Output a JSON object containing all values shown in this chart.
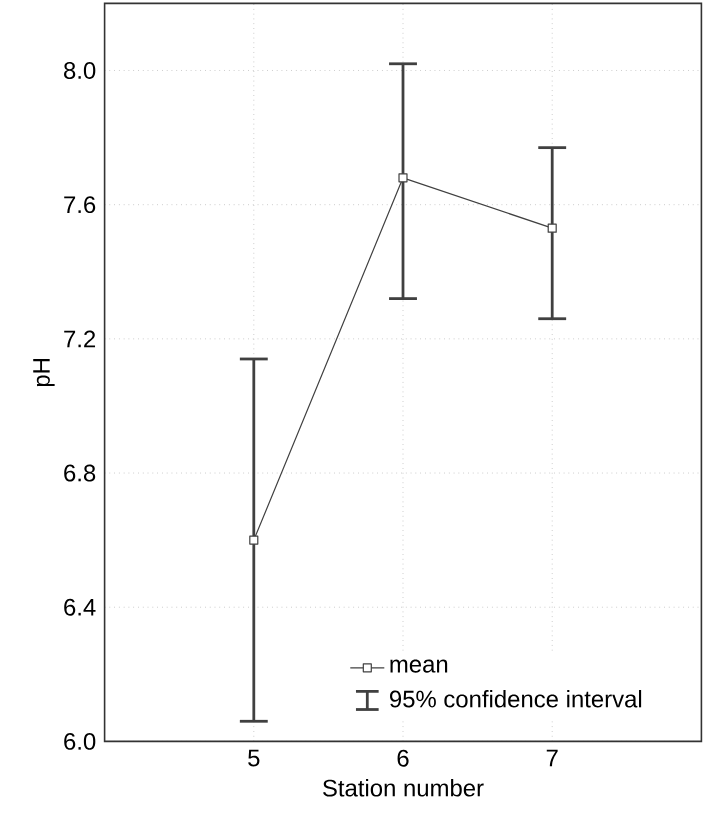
{
  "chart_data": {
    "type": "line",
    "xlabel": "Station number",
    "ylabel": "pH",
    "x": [
      5,
      6,
      7
    ],
    "series": [
      {
        "name": "mean",
        "color": "#404040",
        "values": [
          6.6,
          7.68,
          7.53
        ],
        "errors": [
          [
            6.06,
            7.14
          ],
          [
            7.32,
            8.02
          ],
          [
            7.26,
            7.77
          ]
        ]
      }
    ],
    "annotations": [
      "95% confidence interval"
    ],
    "xlim": [
      4,
      8
    ],
    "xticks": [
      5,
      6,
      7
    ],
    "ylim": [
      6.0,
      8.2
    ],
    "yticks": [
      {
        "value": 6.0,
        "label": "6.0"
      },
      6.4,
      6.8,
      7.2,
      7.6,
      {
        "value": 8.0,
        "label": "8.0"
      }
    ],
    "grid": true,
    "legend": "bottom right",
    "marker": "square",
    "line_style": "solid"
  }
}
